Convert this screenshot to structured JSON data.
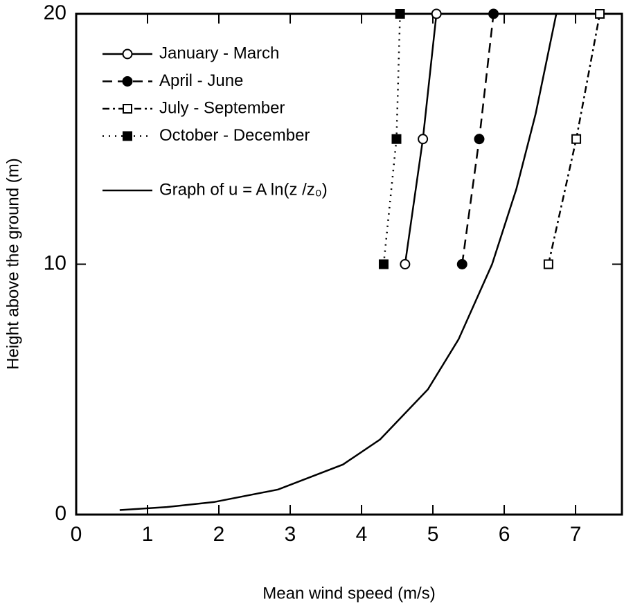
{
  "chart_data": {
    "type": "line",
    "xlabel": "Mean wind speed (m/s)",
    "ylabel": "Height above the ground (m)",
    "xlim": [
      0,
      7.65
    ],
    "ylim": [
      0,
      20
    ],
    "xticks": [
      0,
      1,
      2,
      3,
      4,
      5,
      6,
      7
    ],
    "yticks": [
      0,
      10,
      20
    ],
    "legend": "upper left",
    "series": [
      {
        "name": "January - March",
        "color": "#000000",
        "dash": "solid",
        "marker": "circle-open",
        "x": [
          4.61,
          4.86,
          5.05
        ],
        "values": [
          10,
          15,
          20
        ]
      },
      {
        "name": "April - June",
        "color": "#000000",
        "dash": "dashed",
        "marker": "circle-filled",
        "x": [
          5.41,
          5.65,
          5.85
        ],
        "values": [
          10,
          15,
          20
        ]
      },
      {
        "name": "July - September",
        "color": "#000000",
        "dash": "dashdot",
        "marker": "square-open",
        "x": [
          6.62,
          7.01,
          7.34
        ],
        "values": [
          10,
          15,
          20
        ]
      },
      {
        "name": "October - December",
        "color": "#000000",
        "dash": "dotted",
        "marker": "square-filled",
        "x": [
          4.31,
          4.49,
          4.54
        ],
        "values": [
          10,
          15,
          20
        ]
      },
      {
        "name": "Graph of u = A ln(z /z₀)",
        "color": "#000000",
        "dash": "solid",
        "marker": "none",
        "x": [
          0.61,
          1.27,
          1.93,
          2.83,
          3.74,
          4.26,
          4.93,
          5.36,
          5.83,
          6.17,
          6.44,
          6.73
        ],
        "values": [
          0.18,
          0.3,
          0.5,
          1,
          2,
          3,
          5,
          7,
          10,
          13,
          16,
          20
        ]
      }
    ]
  }
}
